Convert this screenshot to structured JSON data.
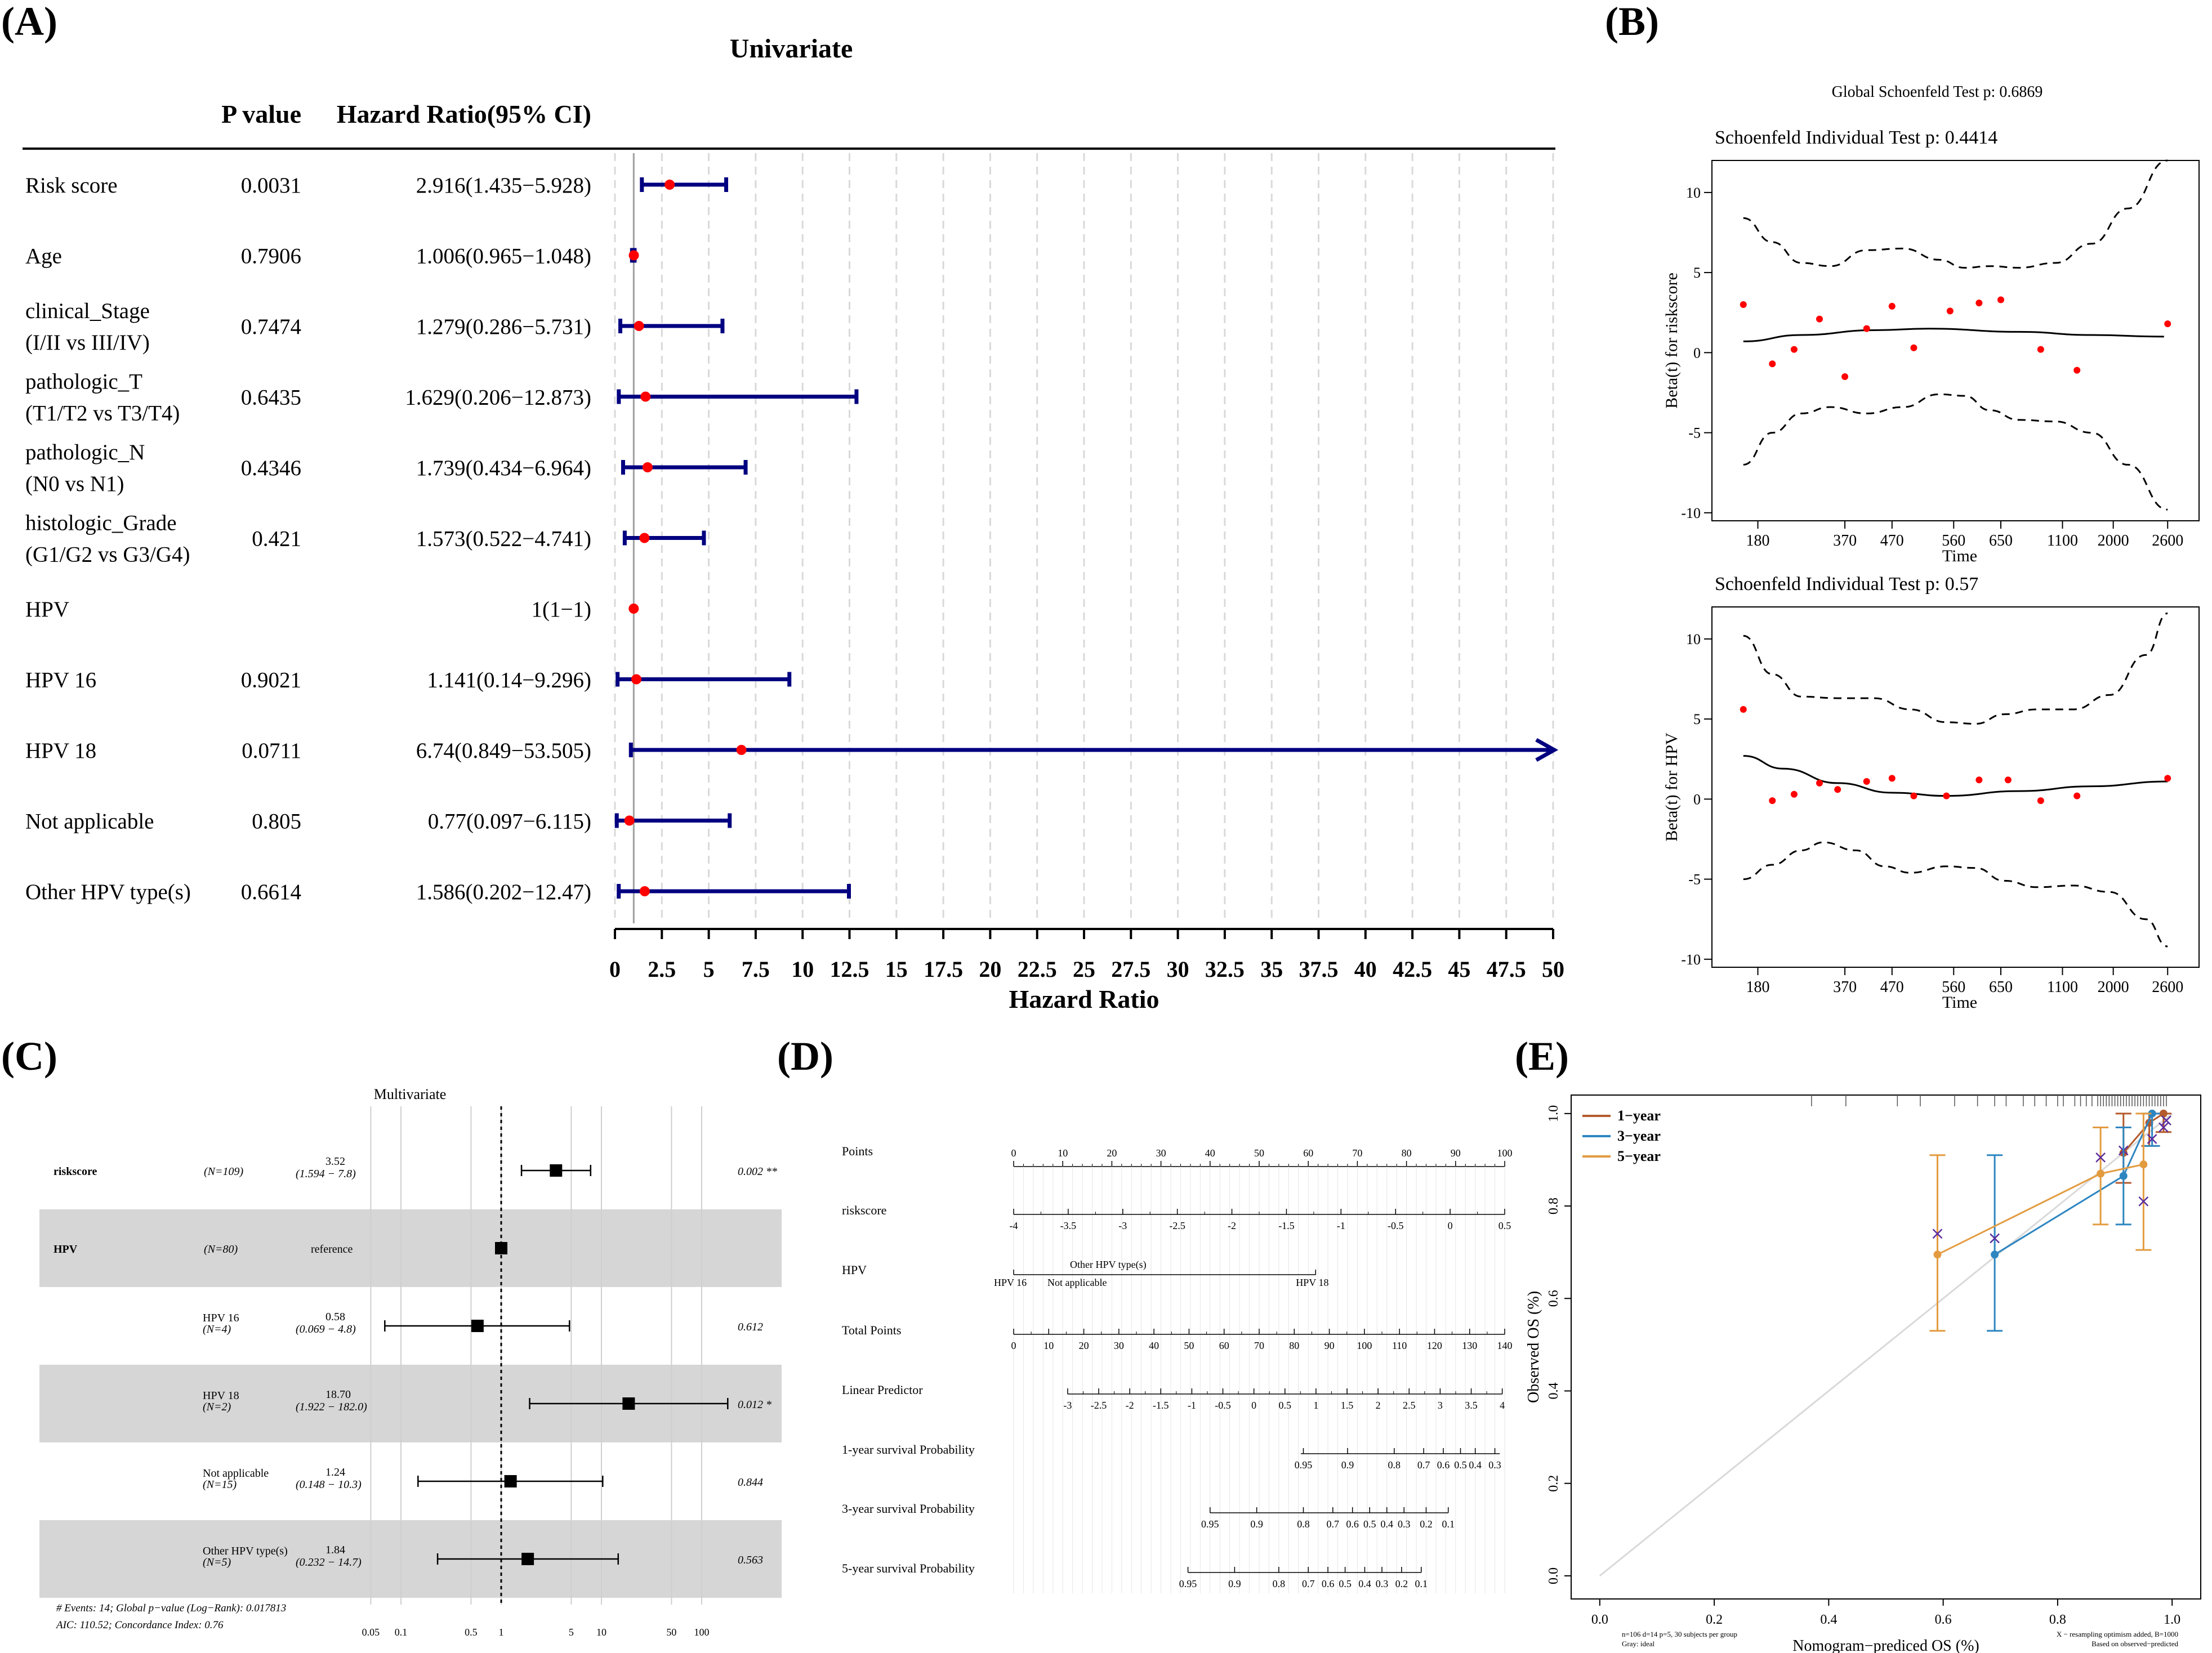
{
  "panels": {
    "a": "(A)",
    "b": "(B)",
    "c": "(C)",
    "d": "(D)",
    "e": "(E)"
  },
  "chart_data": [
    {
      "id": "A",
      "type": "forest",
      "title": "Univariate",
      "col_pvalue": "P value",
      "col_hr": "Hazard Ratio(95% CI)",
      "xlabel": "Hazard Ratio",
      "xlim": [
        0,
        50
      ],
      "ticks": [
        "0",
        "2.5",
        "5",
        "7.5",
        "10",
        "12.5",
        "15",
        "17.5",
        "20",
        "22.5",
        "25",
        "27.5",
        "30",
        "32.5",
        "35",
        "37.5",
        "40",
        "42.5",
        "45",
        "47.5",
        "50"
      ],
      "rows": [
        {
          "label": [
            "Risk score"
          ],
          "p": "0.0031",
          "ci": "2.916(1.435−5.928)",
          "hr": 2.916,
          "lo": 1.435,
          "hi": 5.928
        },
        {
          "label": [
            "Age"
          ],
          "p": "0.7906",
          "ci": "1.006(0.965−1.048)",
          "hr": 1.006,
          "lo": 0.965,
          "hi": 1.048
        },
        {
          "label": [
            "clinical_Stage",
            "(I/II vs III/IV)"
          ],
          "p": "0.7474",
          "ci": "1.279(0.286−5.731)",
          "hr": 1.279,
          "lo": 0.286,
          "hi": 5.731
        },
        {
          "label": [
            "pathologic_T",
            "(T1/T2 vs T3/T4)"
          ],
          "p": "0.6435",
          "ci": "1.629(0.206−12.873)",
          "hr": 1.629,
          "lo": 0.206,
          "hi": 12.873
        },
        {
          "label": [
            "pathologic_N",
            "(N0 vs N1)"
          ],
          "p": "0.4346",
          "ci": "1.739(0.434−6.964)",
          "hr": 1.739,
          "lo": 0.434,
          "hi": 6.964
        },
        {
          "label": [
            "histologic_Grade",
            "(G1/G2 vs G3/G4)"
          ],
          "p": "0.421",
          "ci": "1.573(0.522−4.741)",
          "hr": 1.573,
          "lo": 0.522,
          "hi": 4.741
        },
        {
          "label": [
            "HPV"
          ],
          "p": "",
          "ci": "1(1−1)",
          "hr": 1,
          "lo": 1,
          "hi": 1
        },
        {
          "label": [
            "HPV 16"
          ],
          "p": "0.9021",
          "ci": "1.141(0.14−9.296)",
          "hr": 1.141,
          "lo": 0.14,
          "hi": 9.296
        },
        {
          "label": [
            "HPV 18"
          ],
          "p": "0.0711",
          "ci": "6.74(0.849−53.505)",
          "hr": 6.74,
          "lo": 0.849,
          "hi": 53.505,
          "arrow": true
        },
        {
          "label": [
            "Not applicable"
          ],
          "p": "0.805",
          "ci": "0.77(0.097−6.115)",
          "hr": 0.77,
          "lo": 0.097,
          "hi": 6.115
        },
        {
          "label": [
            "Other HPV type(s)"
          ],
          "p": "0.6614",
          "ci": "1.586(0.202−12.47)",
          "hr": 1.586,
          "lo": 0.202,
          "hi": 12.47
        }
      ],
      "colors": {
        "line": "#000080",
        "point": "#ff0000",
        "grid": "#d9d9d9"
      }
    },
    {
      "id": "B",
      "type": "scatter",
      "global_title": "Global Schoenfeld Test p: 0.6869",
      "xlabel": "Time",
      "xticks": [
        "180",
        "370",
        "470",
        "560",
        "650",
        "1100",
        "2000",
        "2600"
      ],
      "yticks": [
        "-10",
        "-5",
        "0",
        "5",
        "10"
      ],
      "subplots": [
        {
          "title": "Schoenfeld Individual Test p: 0.4414",
          "ylabel": "Beta(t) for riskscore",
          "ylim": [
            -10.5,
            12
          ],
          "points": [
            [
              0.4,
              3.0
            ],
            [
              1.2,
              -0.7
            ],
            [
              1.8,
              0.2
            ],
            [
              2.5,
              2.1
            ],
            [
              3.2,
              -1.5
            ],
            [
              3.8,
              1.5
            ],
            [
              4.5,
              2.9
            ],
            [
              5.1,
              0.3
            ],
            [
              6.1,
              2.6
            ],
            [
              6.9,
              3.1
            ],
            [
              7.5,
              3.3
            ],
            [
              8.6,
              0.2
            ],
            [
              9.6,
              -1.1
            ],
            [
              12.1,
              1.8
            ]
          ],
          "fit": [
            [
              0.4,
              0.7
            ],
            [
              2,
              1.1
            ],
            [
              4,
              1.4
            ],
            [
              5.5,
              1.5
            ],
            [
              8,
              1.3
            ],
            [
              10,
              1.1
            ],
            [
              12,
              1.0
            ]
          ],
          "upper": [
            [
              0.4,
              8.4
            ],
            [
              1.2,
              6.9
            ],
            [
              2,
              5.6
            ],
            [
              2.8,
              5.4
            ],
            [
              3.8,
              6.4
            ],
            [
              4.8,
              6.5
            ],
            [
              5.8,
              5.8
            ],
            [
              6.5,
              5.3
            ],
            [
              7.2,
              5.4
            ],
            [
              8,
              5.3
            ],
            [
              9,
              5.6
            ],
            [
              10,
              6.8
            ],
            [
              11,
              9.0
            ],
            [
              12.1,
              12.0
            ]
          ],
          "lower": [
            [
              0.4,
              -7.0
            ],
            [
              1.2,
              -5.0
            ],
            [
              2,
              -3.8
            ],
            [
              2.8,
              -3.4
            ],
            [
              3.8,
              -3.8
            ],
            [
              4.8,
              -3.4
            ],
            [
              5.8,
              -2.6
            ],
            [
              6.5,
              -2.7
            ],
            [
              7.2,
              -3.6
            ],
            [
              8,
              -4.2
            ],
            [
              9,
              -4.3
            ],
            [
              10,
              -5.0
            ],
            [
              11,
              -7.0
            ],
            [
              12.1,
              -9.8
            ]
          ]
        },
        {
          "title": "Schoenfeld Individual Test p: 0.57",
          "ylabel": "Beta(t) for HPV",
          "ylim": [
            -10.5,
            12
          ],
          "points": [
            [
              0.4,
              5.6
            ],
            [
              1.2,
              -0.1
            ],
            [
              1.8,
              0.3
            ],
            [
              2.5,
              1.0
            ],
            [
              3.0,
              0.6
            ],
            [
              3.8,
              1.1
            ],
            [
              4.5,
              1.3
            ],
            [
              5.1,
              0.2
            ],
            [
              6.0,
              0.2
            ],
            [
              6.9,
              1.2
            ],
            [
              7.7,
              1.2
            ],
            [
              8.6,
              -0.1
            ],
            [
              9.6,
              0.2
            ],
            [
              12.1,
              1.3
            ]
          ],
          "fit": [
            [
              0.4,
              2.7
            ],
            [
              1.5,
              1.9
            ],
            [
              3,
              1.0
            ],
            [
              4.5,
              0.4
            ],
            [
              6,
              0.2
            ],
            [
              8,
              0.5
            ],
            [
              10,
              0.8
            ],
            [
              12.1,
              1.1
            ]
          ],
          "upper": [
            [
              0.4,
              10.2
            ],
            [
              1.2,
              7.8
            ],
            [
              2,
              6.4
            ],
            [
              3,
              6.3
            ],
            [
              4,
              6.3
            ],
            [
              5,
              5.6
            ],
            [
              6,
              4.8
            ],
            [
              6.8,
              4.7
            ],
            [
              7.6,
              5.3
            ],
            [
              8.5,
              5.6
            ],
            [
              9.5,
              5.6
            ],
            [
              10.5,
              6.5
            ],
            [
              11.5,
              9.0
            ],
            [
              12.1,
              11.6
            ]
          ],
          "lower": [
            [
              0.4,
              -5.0
            ],
            [
              1.2,
              -4.1
            ],
            [
              2,
              -3.2
            ],
            [
              2.6,
              -2.7
            ],
            [
              3.5,
              -3.2
            ],
            [
              4.3,
              -4.2
            ],
            [
              5,
              -4.6
            ],
            [
              6,
              -4.2
            ],
            [
              6.8,
              -4.3
            ],
            [
              7.6,
              -5.1
            ],
            [
              8.5,
              -5.5
            ],
            [
              9.5,
              -5.4
            ],
            [
              10.5,
              -5.8
            ],
            [
              11.5,
              -7.5
            ],
            [
              12.1,
              -9.2
            ]
          ]
        }
      ]
    },
    {
      "id": "C",
      "type": "forest",
      "title": "Multivariate",
      "xscale": "log",
      "ticks": [
        "0.05",
        "0.1",
        "0.5",
        "1",
        "5",
        "10",
        "50",
        "100"
      ],
      "rows": [
        {
          "name": "riskscore",
          "n": "(N=109)",
          "est": "3.52",
          "ci": "(1.594 −  7.8)",
          "p": "0.002 **",
          "hr": 3.52,
          "lo": 1.594,
          "hi": 7.8,
          "shade": false
        },
        {
          "name": "HPV",
          "n": "(N=80)",
          "ref": "reference",
          "hr": 1,
          "shade": true
        },
        {
          "sub": "HPV 16",
          "n": "(N=4)",
          "est": "0.58",
          "ci": "(0.069 −  4.8)",
          "p": "0.612",
          "hr": 0.58,
          "lo": 0.069,
          "hi": 4.8,
          "shade": false
        },
        {
          "sub": "HPV 18",
          "n": "(N=2)",
          "est": "18.70",
          "ci": "(1.922 − 182.0)",
          "p": "0.012 *",
          "hr": 18.7,
          "lo": 1.922,
          "hi": 182.0,
          "shade": true
        },
        {
          "sub": "Not applicable",
          "n": "(N=15)",
          "est": "1.24",
          "ci": "(0.148 −  10.3)",
          "p": "0.844",
          "hr": 1.24,
          "lo": 0.148,
          "hi": 10.3,
          "shade": false
        },
        {
          "sub": "Other HPV type(s)",
          "n": "(N=5)",
          "est": "1.84",
          "ci": "(0.232 −  14.7)",
          "p": "0.563",
          "hr": 1.84,
          "lo": 0.232,
          "hi": 14.7,
          "shade": true
        }
      ],
      "footer1": "# Events: 14; Global p−value (Log−Rank): 0.017813",
      "footer2": "AIC: 110.52; Concordance Index: 0.76"
    },
    {
      "id": "D",
      "type": "nomogram",
      "rows": [
        {
          "label": "Points",
          "ticks": [
            "0",
            "10",
            "20",
            "30",
            "40",
            "50",
            "60",
            "70",
            "80",
            "90",
            "100"
          ],
          "start": 0,
          "end": 1
        },
        {
          "label": "riskscore",
          "ticks": [
            "-4",
            "-3.5",
            "-3",
            "-2.5",
            "-2",
            "-1.5",
            "-1",
            "-0.5",
            "0",
            "0.5"
          ],
          "start": 0,
          "end": 1,
          "below": true
        },
        {
          "label": "HPV",
          "cats": [
            "HPV 16",
            "Not applicable",
            "Other HPV type(s)",
            "HPV 18"
          ],
          "start": 0,
          "end": 0.615
        },
        {
          "label": "Total Points",
          "ticks": [
            "0",
            "10",
            "20",
            "30",
            "40",
            "50",
            "60",
            "70",
            "80",
            "90",
            "100",
            "110",
            "120",
            "130",
            "140"
          ],
          "start": 0,
          "end": 1,
          "below": true
        },
        {
          "label": "Linear Predictor",
          "ticks": [
            "-3",
            "-2.5",
            "-2",
            "-1.5",
            "-1",
            "-0.5",
            "0",
            "0.5",
            "1",
            "1.5",
            "2",
            "2.5",
            "3",
            "3.5",
            "4"
          ],
          "start": 0.11,
          "end": 0.995,
          "below": true
        },
        {
          "label": "1-year survival Probability",
          "ticks": [
            "0.95",
            "0.9",
            "0.8",
            "0.7",
            "0.6",
            "0.5",
            "0.4",
            "0.3"
          ],
          "pos": [
            0.59,
            0.68,
            0.775,
            0.835,
            0.875,
            0.91,
            0.94,
            0.98
          ],
          "start": 0.585,
          "end": 0.99,
          "below": true
        },
        {
          "label": "3-year survival Probability",
          "ticks": [
            "0.95",
            "0.9",
            "0.8",
            "0.7",
            "0.6",
            "0.5",
            "0.4",
            "0.3",
            "0.2",
            "0.1"
          ],
          "pos": [
            0.4,
            0.495,
            0.59,
            0.65,
            0.69,
            0.725,
            0.76,
            0.795,
            0.84,
            0.885
          ],
          "start": 0.4,
          "end": 0.885,
          "below": true
        },
        {
          "label": "5-year survival Probability",
          "ticks": [
            "0.95",
            "0.9",
            "0.8",
            "0.7",
            "0.6",
            "0.5",
            "0.4",
            "0.3",
            "0.2",
            "0.1"
          ],
          "pos": [
            0.355,
            0.45,
            0.54,
            0.6,
            0.64,
            0.675,
            0.715,
            0.75,
            0.79,
            0.83
          ],
          "start": 0.355,
          "end": 0.83,
          "below": true
        }
      ]
    },
    {
      "id": "E",
      "type": "calibration",
      "xlabel": "Nomogram−prediced OS (%)",
      "ylabel": "Observed OS (%)",
      "xlim": [
        -0.05,
        1.05
      ],
      "ylim": [
        -0.05,
        1.04
      ],
      "ticks": [
        "0.0",
        "0.2",
        "0.4",
        "0.6",
        "0.8",
        "1.0"
      ],
      "legend": [
        "1−year",
        "3−year",
        "5−year"
      ],
      "colors": [
        "#b45a2c",
        "#2e86c1",
        "#e39b40"
      ],
      "series": [
        {
          "name": "1−year",
          "pts": [
            [
              0.915,
              0.915
            ],
            [
              0.96,
              0.98
            ],
            [
              0.985,
              1.0
            ]
          ],
          "err": [
            [
              0.915,
              0.85,
              1.0
            ],
            [
              0.96,
              0.93,
              1.0
            ],
            [
              0.985,
              0.96,
              1.0
            ]
          ],
          "x": [
            [
              0.915,
              0.92
            ],
            [
              0.985,
              0.97
            ]
          ]
        },
        {
          "name": "3−year",
          "pts": [
            [
              0.69,
              0.695
            ],
            [
              0.915,
              0.865
            ],
            [
              0.965,
              1.0
            ]
          ],
          "err": [
            [
              0.69,
              0.53,
              0.91
            ],
            [
              0.915,
              0.76,
              0.97
            ],
            [
              0.965,
              0.93,
              1.0
            ]
          ],
          "x": [
            [
              0.69,
              0.73
            ],
            [
              0.965,
              0.945
            ],
            [
              0.99,
              0.985
            ]
          ]
        },
        {
          "name": "5−year",
          "pts": [
            [
              0.59,
              0.695
            ],
            [
              0.875,
              0.87
            ],
            [
              0.95,
              0.89
            ]
          ],
          "err": [
            [
              0.59,
              0.53,
              0.91
            ],
            [
              0.875,
              0.76,
              0.97
            ],
            [
              0.95,
              0.705,
              1.0
            ]
          ],
          "x": [
            [
              0.59,
              0.74
            ],
            [
              0.875,
              0.905
            ],
            [
              0.95,
              0.81
            ]
          ]
        }
      ],
      "rug": [
        0.37,
        0.43,
        0.52,
        0.56,
        0.62,
        0.66,
        0.69,
        0.71,
        0.74,
        0.76,
        0.78,
        0.8,
        0.81,
        0.83,
        0.84,
        0.85,
        0.86,
        0.87,
        0.875,
        0.88,
        0.885,
        0.89,
        0.895,
        0.9,
        0.905,
        0.91,
        0.915,
        0.92,
        0.925,
        0.93,
        0.935,
        0.94,
        0.945,
        0.95,
        0.955,
        0.96,
        0.965,
        0.97,
        0.975,
        0.98,
        0.985,
        0.99
      ],
      "footnote_left": [
        "n=106 d=14 p=5, 30 subjects per group",
        "Gray: ideal"
      ],
      "footnote_right": [
        "X − resampling optimism added, B=1000",
        "Based on observed−predicted"
      ]
    }
  ]
}
